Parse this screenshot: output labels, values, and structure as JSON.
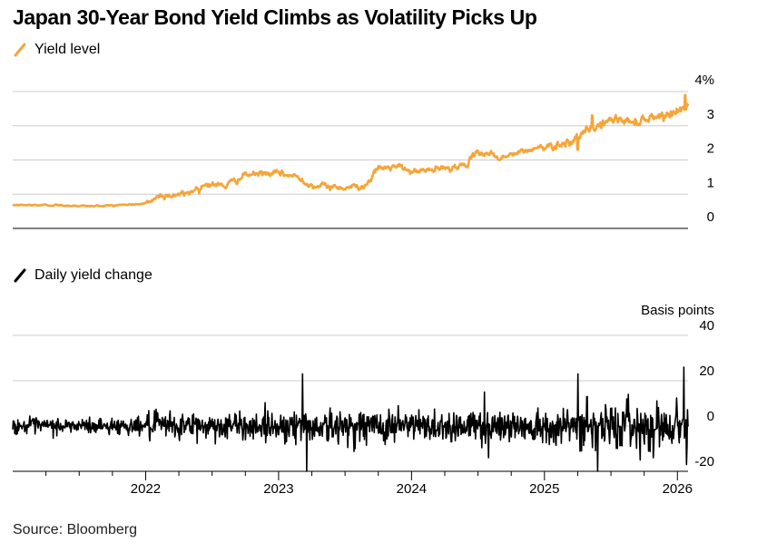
{
  "title": "Japan 30-Year Bond Yield Climbs as Volatility Picks Up",
  "source": "Source: Bloomberg",
  "colors": {
    "yield": "#f5a53a",
    "change": "#000000",
    "grid": "#cccccc"
  },
  "chart_data": [
    {
      "type": "line",
      "legend": "Yield level",
      "unit_suffix": "%",
      "ylim": [
        0,
        4
      ],
      "yticks": [
        0,
        1,
        2,
        3,
        4
      ],
      "ytick_labels": [
        "0",
        "1",
        "2",
        "3",
        "4%"
      ],
      "x_range": [
        2021.0,
        2026.08
      ],
      "anchors": [
        [
          2021.0,
          0.68
        ],
        [
          2021.3,
          0.68
        ],
        [
          2021.6,
          0.65
        ],
        [
          2021.9,
          0.7
        ],
        [
          2022.0,
          0.72
        ],
        [
          2022.1,
          0.95
        ],
        [
          2022.3,
          1.0
        ],
        [
          2022.45,
          1.3
        ],
        [
          2022.6,
          1.25
        ],
        [
          2022.75,
          1.55
        ],
        [
          2022.85,
          1.6
        ],
        [
          2023.0,
          1.6
        ],
        [
          2023.15,
          1.5
        ],
        [
          2023.25,
          1.25
        ],
        [
          2023.5,
          1.2
        ],
        [
          2023.65,
          1.25
        ],
        [
          2023.75,
          1.75
        ],
        [
          2023.9,
          1.8
        ],
        [
          2024.0,
          1.65
        ],
        [
          2024.25,
          1.75
        ],
        [
          2024.4,
          1.85
        ],
        [
          2024.5,
          2.2
        ],
        [
          2024.6,
          2.2
        ],
        [
          2024.65,
          2.05
        ],
        [
          2024.8,
          2.2
        ],
        [
          2024.95,
          2.35
        ],
        [
          2025.15,
          2.5
        ],
        [
          2025.25,
          2.65
        ],
        [
          2025.35,
          2.9
        ],
        [
          2025.45,
          3.1
        ],
        [
          2025.55,
          3.2
        ],
        [
          2025.65,
          3.1
        ],
        [
          2025.75,
          3.2
        ],
        [
          2025.85,
          3.3
        ],
        [
          2026.0,
          3.4
        ],
        [
          2026.05,
          3.55
        ]
      ],
      "spikes": [
        [
          2025.25,
          2.3
        ],
        [
          2025.36,
          3.3
        ],
        [
          2026.06,
          3.9
        ]
      ]
    },
    {
      "type": "line",
      "legend": "Daily yield change",
      "unit_label": "Basis points",
      "ylim": [
        -20,
        40
      ],
      "yticks": [
        -20,
        0,
        20,
        40
      ],
      "ytick_labels": [
        "-20",
        "0",
        "20",
        "40"
      ],
      "x_range": [
        2021.0,
        2026.08
      ],
      "xticks": [
        2022,
        2023,
        2024,
        2025,
        2026
      ],
      "xtick_labels": [
        "2022",
        "2023",
        "2024",
        "2025",
        "2026"
      ],
      "minor_xticks": [
        2021.25,
        2021.5,
        2021.75,
        2022.25,
        2022.5,
        2022.75,
        2023.25,
        2023.5,
        2023.75,
        2024.25,
        2024.5,
        2024.75,
        2025.25,
        2025.5,
        2025.75
      ],
      "volatility_bands": [
        [
          2021.0,
          2022.0,
          3
        ],
        [
          2022.0,
          2023.0,
          5
        ],
        [
          2023.0,
          2025.25,
          6
        ],
        [
          2025.25,
          2026.08,
          8
        ]
      ],
      "spikes": [
        [
          2023.18,
          23
        ],
        [
          2023.21,
          -20
        ],
        [
          2023.45,
          -8
        ],
        [
          2023.9,
          9
        ],
        [
          2024.3,
          -7
        ],
        [
          2024.55,
          15
        ],
        [
          2024.58,
          -14
        ],
        [
          2024.95,
          8
        ],
        [
          2025.25,
          23
        ],
        [
          2025.28,
          -11
        ],
        [
          2025.32,
          13
        ],
        [
          2025.4,
          -20
        ],
        [
          2025.62,
          12
        ],
        [
          2025.72,
          -15
        ],
        [
          2026.05,
          26
        ],
        [
          2026.07,
          -17
        ]
      ]
    }
  ]
}
